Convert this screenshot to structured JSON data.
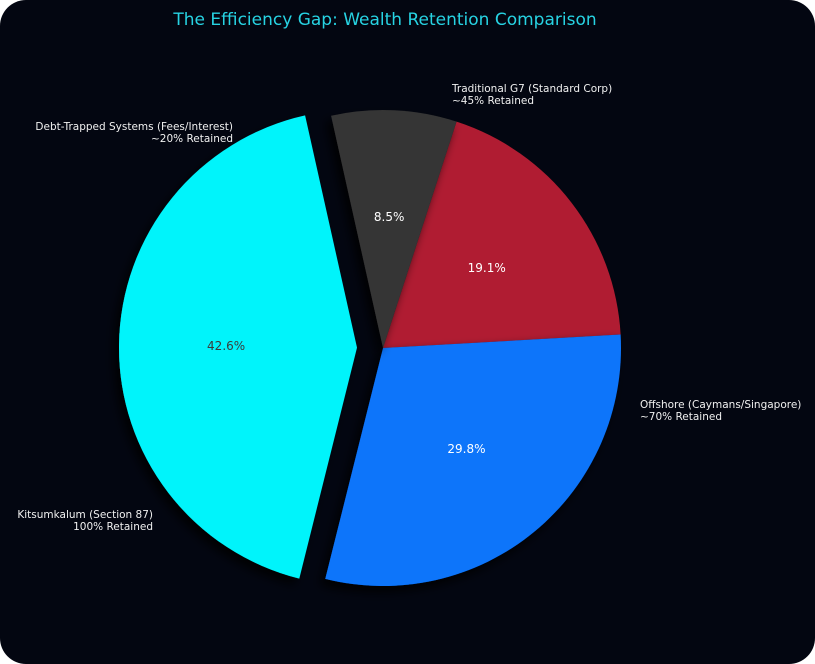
{
  "title": "The Efficiency Gap: Wealth Retention Comparison",
  "chart_data": {
    "type": "pie",
    "title": "The Efficiency Gap: Wealth Retention Comparison",
    "exploded": "Kitsumkalum (Section 87)",
    "slices": [
      {
        "name": "Traditional G7 (Standard Corp)",
        "value": 19.1,
        "label": "19.1%",
        "note": "~45% Retained",
        "color": "#b01f33",
        "text_color": "#ffffff"
      },
      {
        "name": "Offshore (Caymans/Singapore)",
        "value": 29.8,
        "label": "29.8%",
        "note": "~70% Retained",
        "color": "#0a74fa",
        "text_color": "#ffffff"
      },
      {
        "name": "Kitsumkalum (Section 87)",
        "value": 42.6,
        "label": "42.6%",
        "note": "100% Retained",
        "color": "#04f4fb",
        "text_color": "#3b3b3b"
      },
      {
        "name": "Debt-Trapped Systems (Fees/Interest)",
        "value": 8.5,
        "label": "8.5%",
        "note": "~20% Retained",
        "color": "#343434",
        "text_color": "#ffffff"
      }
    ]
  }
}
